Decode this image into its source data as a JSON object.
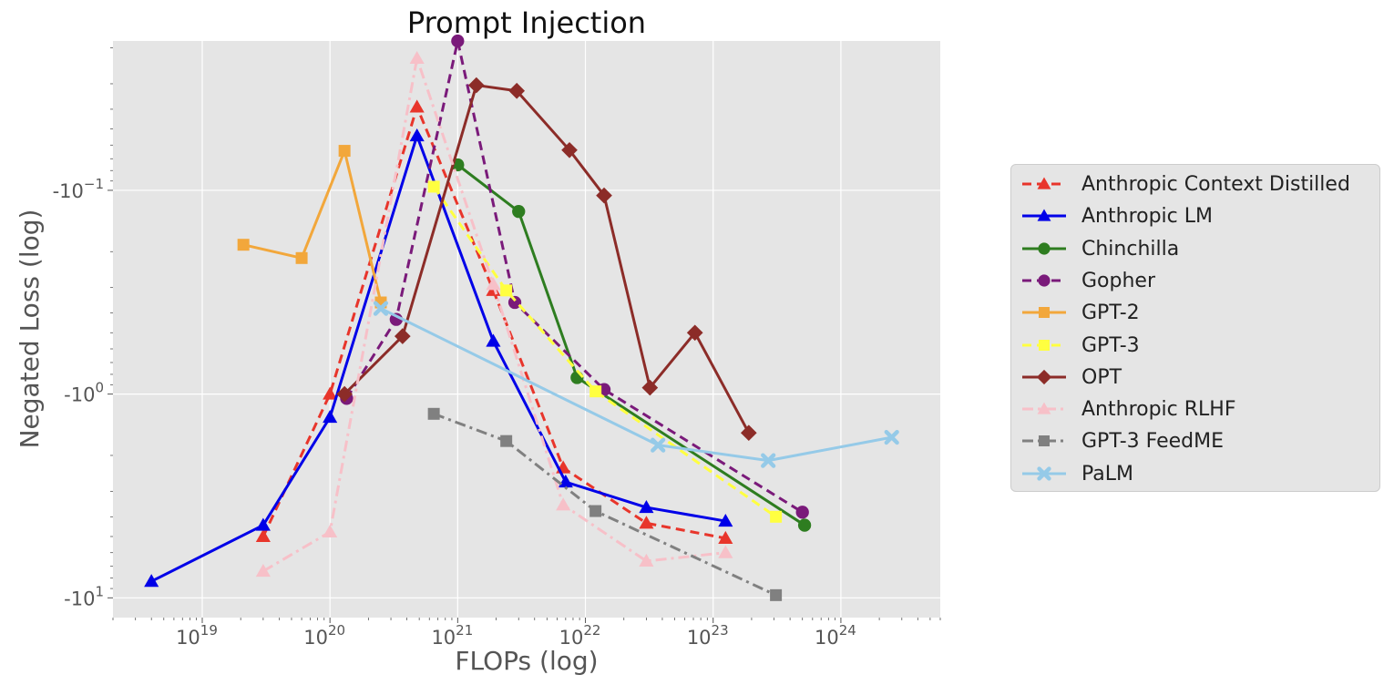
{
  "chart_data": {
    "type": "line",
    "title": "Prompt Injection",
    "xlabel": "FLOPs (log)",
    "ylabel": "Negated Loss (log)",
    "x_scale": "log",
    "y_scale": "log",
    "y_values_note": "y values are negated loss magnitudes (plotted as -value)",
    "xlim": [
      2e+18,
      6e+24
    ],
    "ylim_magnitude": [
      0.0185,
      12.5
    ],
    "grid": true,
    "legend_position": "right",
    "x_ticks": [
      {
        "value": 1e+19,
        "base": "10",
        "exp": "19"
      },
      {
        "value": 1e+20,
        "base": "10",
        "exp": "20"
      },
      {
        "value": 1e+21,
        "base": "10",
        "exp": "21"
      },
      {
        "value": 1e+22,
        "base": "10",
        "exp": "22"
      },
      {
        "value": 1e+23,
        "base": "10",
        "exp": "23"
      },
      {
        "value": 1e+24,
        "base": "10",
        "exp": "24"
      }
    ],
    "y_ticks": [
      {
        "value": 0.1,
        "base": "-10",
        "exp": "−1"
      },
      {
        "value": 1,
        "base": "-10",
        "exp": "0"
      },
      {
        "value": 10,
        "base": "-10",
        "exp": "1"
      }
    ],
    "series": [
      {
        "name": "Anthropic Context Distilled",
        "color": "#e8352b",
        "dash": "dashed",
        "marker": "triangle",
        "points": [
          [
            3e+19,
            5.0
          ],
          [
            1e+20,
            1.0
          ],
          [
            4.8e+20,
            0.039
          ],
          [
            1.9e+21,
            0.31
          ],
          [
            6.7e+21,
            2.3
          ],
          [
            3e+22,
            4.3
          ],
          [
            1.25e+23,
            5.1
          ]
        ]
      },
      {
        "name": "Anthropic LM",
        "color": "#0000e8",
        "dash": "solid",
        "marker": "triangle",
        "points": [
          [
            4e+18,
            8.3
          ],
          [
            3e+19,
            4.4
          ],
          [
            1e+20,
            1.3
          ],
          [
            4.8e+20,
            0.054
          ],
          [
            1.9e+21,
            0.55
          ],
          [
            7e+21,
            2.7
          ],
          [
            3e+22,
            3.6
          ],
          [
            1.25e+23,
            4.2
          ]
        ]
      },
      {
        "name": "Chinchilla",
        "color": "#2e7d20",
        "dash": "solid",
        "marker": "circle",
        "points": [
          [
            1e+21,
            0.075
          ],
          [
            3e+21,
            0.127
          ],
          [
            8.6e+21,
            0.83
          ],
          [
            5.2e+23,
            4.4
          ]
        ]
      },
      {
        "name": "Gopher",
        "color": "#7a1a7a",
        "dash": "dashed",
        "marker": "circle",
        "points": [
          [
            1.35e+20,
            1.05
          ],
          [
            3.3e+20,
            0.43
          ],
          [
            1e+21,
            0.0185
          ],
          [
            2.8e+21,
            0.355
          ],
          [
            1.4e+22,
            0.95
          ],
          [
            5e+23,
            3.8
          ]
        ]
      },
      {
        "name": "GPT-2",
        "color": "#f2a73b",
        "dash": "solid",
        "marker": "square",
        "points": [
          [
            2.1e+19,
            0.185
          ],
          [
            6e+19,
            0.215
          ],
          [
            1.3e+20,
            0.064
          ],
          [
            2.5e+20,
            0.355
          ]
        ]
      },
      {
        "name": "GPT-3",
        "color": "#ffff40",
        "dash": "dashed",
        "marker": "square",
        "points": [
          [
            6.5e+20,
            0.096
          ],
          [
            2.4e+21,
            0.31
          ],
          [
            1.2e+22,
            0.97
          ],
          [
            3.1e+23,
            4.0
          ]
        ]
      },
      {
        "name": "OPT",
        "color": "#8c2c28",
        "dash": "solid",
        "marker": "diamond",
        "points": [
          [
            1.3e+20,
            1.0
          ],
          [
            3.7e+20,
            0.52
          ],
          [
            1.4e+21,
            0.0305
          ],
          [
            2.9e+21,
            0.0325
          ],
          [
            7.5e+21,
            0.0635
          ],
          [
            1.4e+22,
            0.106
          ],
          [
            3.2e+22,
            0.93
          ],
          [
            7.2e+22,
            0.5
          ],
          [
            1.9e+23,
            1.55
          ]
        ]
      },
      {
        "name": "Anthropic RLHF",
        "color": "#f7c0c8",
        "dash": "dashdot",
        "marker": "triangle",
        "points": [
          [
            3e+19,
            7.4
          ],
          [
            1e+20,
            4.75
          ],
          [
            4.8e+20,
            0.0225
          ],
          [
            1.9e+21,
            0.29
          ],
          [
            6.7e+21,
            3.5
          ],
          [
            3e+22,
            6.6
          ],
          [
            1.25e+23,
            6.0
          ]
        ]
      },
      {
        "name": "GPT-3 FeedME",
        "color": "#808080",
        "dash": "dashdot",
        "marker": "square",
        "points": [
          [
            6.5e+20,
            1.25
          ],
          [
            2.4e+21,
            1.7
          ],
          [
            1.2e+22,
            3.75
          ],
          [
            3.1e+23,
            9.7
          ]
        ]
      },
      {
        "name": "PaLM",
        "color": "#95cae8",
        "dash": "solid",
        "marker": "x",
        "points": [
          [
            2.5e+20,
            0.38
          ],
          [
            3.7e+22,
            1.78
          ],
          [
            2.7e+23,
            2.12
          ],
          [
            2.5e+24,
            1.63
          ]
        ]
      }
    ]
  }
}
